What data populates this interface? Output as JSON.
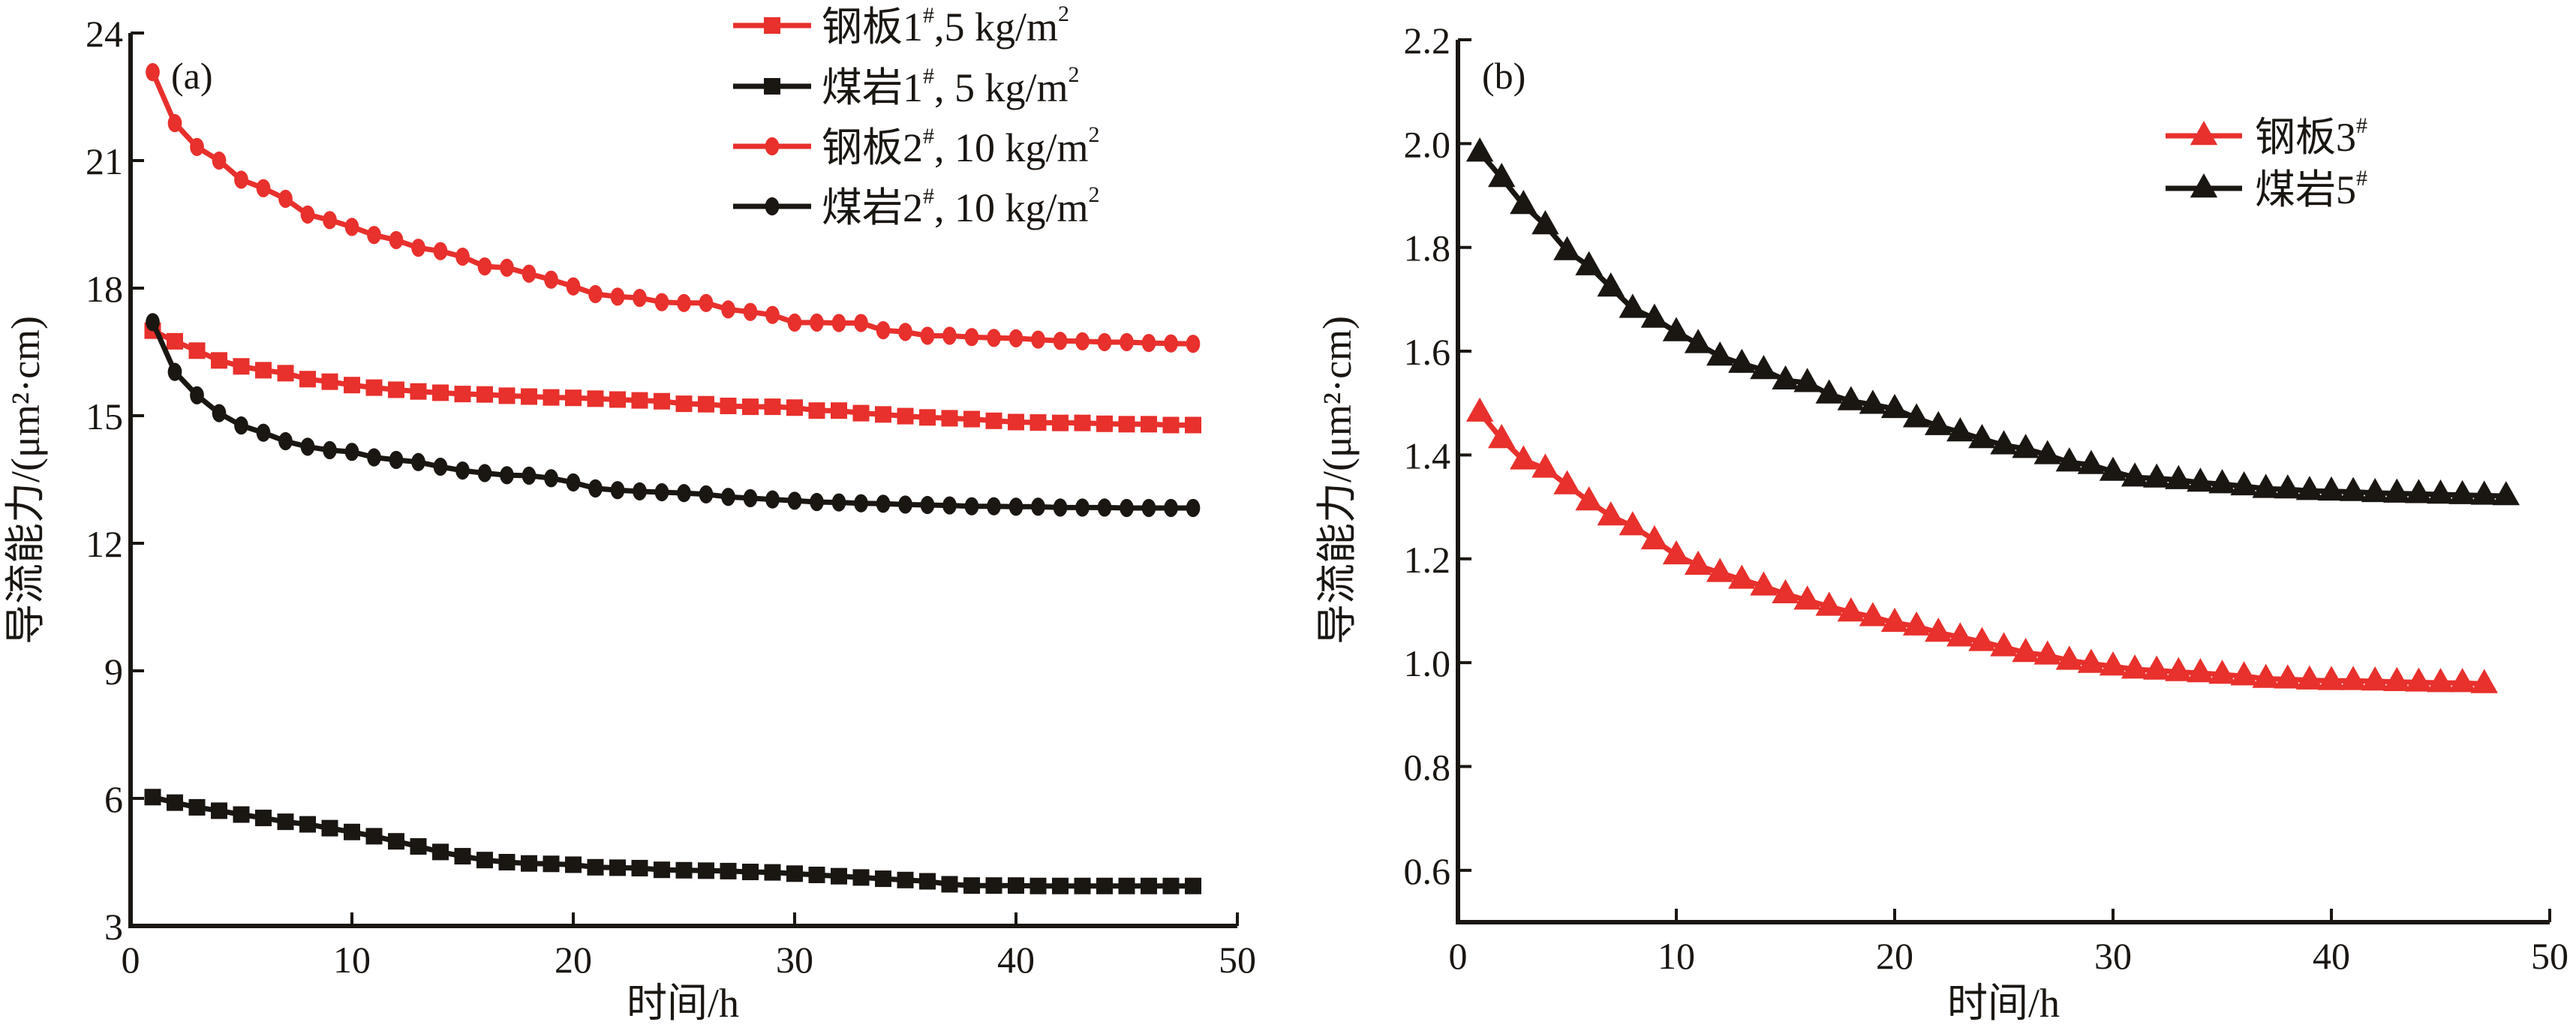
{
  "colors": {
    "steel": "#e8302c",
    "coal": "#1a1612"
  },
  "chart_data": [
    {
      "type": "line",
      "panel_label": "(a)",
      "xlabel": "时间/h",
      "ylabel": "导流能力/(μm²·cm)",
      "xlim": [
        0,
        50
      ],
      "ylim": [
        3,
        24
      ],
      "xticks": [
        0,
        10,
        20,
        30,
        40,
        50
      ],
      "yticks": [
        3,
        6,
        9,
        12,
        15,
        18,
        21,
        24
      ],
      "grid": false,
      "legend_position": "top-right",
      "x": [
        1,
        2,
        3,
        4,
        5,
        6,
        7,
        8,
        9,
        10,
        11,
        12,
        13,
        14,
        15,
        16,
        17,
        18,
        19,
        20,
        21,
        22,
        23,
        24,
        25,
        26,
        27,
        28,
        29,
        30,
        31,
        32,
        33,
        34,
        35,
        36,
        37,
        38,
        39,
        40,
        41,
        42,
        43,
        44,
        45,
        46,
        47,
        48
      ],
      "series": [
        {
          "name": "钢板1#,5 kg/m2",
          "legend_label": "钢板1",
          "legend_suffix": ",5 kg/m",
          "color_key": "steel",
          "marker": "square",
          "values": [
            17.0,
            16.75,
            16.53,
            16.3,
            16.16,
            16.07,
            16.0,
            15.86,
            15.8,
            15.72,
            15.66,
            15.61,
            15.57,
            15.54,
            15.51,
            15.5,
            15.47,
            15.45,
            15.43,
            15.42,
            15.4,
            15.38,
            15.36,
            15.34,
            15.28,
            15.27,
            15.23,
            15.21,
            15.21,
            15.19,
            15.12,
            15.12,
            15.06,
            15.03,
            14.99,
            14.96,
            14.94,
            14.92,
            14.88,
            14.85,
            14.84,
            14.83,
            14.83,
            14.81,
            14.8,
            14.8,
            14.78,
            14.78
          ]
        },
        {
          "name": "煤岩1#, 5 kg/m2",
          "legend_label": "煤岩1",
          "legend_suffix": ", 5  kg/m",
          "color_key": "coal",
          "marker": "square",
          "values": [
            6.03,
            5.9,
            5.79,
            5.71,
            5.62,
            5.54,
            5.45,
            5.39,
            5.3,
            5.21,
            5.11,
            4.99,
            4.87,
            4.74,
            4.64,
            4.55,
            4.5,
            4.47,
            4.46,
            4.44,
            4.38,
            4.37,
            4.36,
            4.32,
            4.31,
            4.3,
            4.29,
            4.27,
            4.26,
            4.23,
            4.2,
            4.17,
            4.14,
            4.11,
            4.08,
            4.05,
            3.98,
            3.95,
            3.95,
            3.95,
            3.94,
            3.94,
            3.94,
            3.94,
            3.94,
            3.94,
            3.94,
            3.94
          ]
        },
        {
          "name": "钢板2#, 10 kg/m2",
          "legend_label": "钢板2",
          "legend_suffix": ", 10 kg/m",
          "color_key": "steel",
          "marker": "circle",
          "values": [
            23.08,
            21.88,
            21.32,
            21.0,
            20.55,
            20.35,
            20.1,
            19.73,
            19.6,
            19.44,
            19.25,
            19.13,
            18.95,
            18.87,
            18.74,
            18.51,
            18.48,
            18.34,
            18.2,
            18.04,
            17.86,
            17.8,
            17.77,
            17.67,
            17.65,
            17.65,
            17.5,
            17.44,
            17.37,
            17.19,
            17.19,
            17.18,
            17.18,
            17.01,
            16.97,
            16.88,
            16.88,
            16.85,
            16.83,
            16.82,
            16.79,
            16.76,
            16.75,
            16.73,
            16.73,
            16.71,
            16.7,
            16.69
          ]
        },
        {
          "name": "煤岩2#, 10 kg/m2",
          "legend_label": "煤岩2",
          "legend_suffix": ", 10 kg/m",
          "color_key": "coal",
          "marker": "circle",
          "values": [
            17.2,
            16.03,
            15.48,
            15.06,
            14.77,
            14.6,
            14.4,
            14.27,
            14.19,
            14.15,
            14.02,
            13.96,
            13.91,
            13.8,
            13.71,
            13.65,
            13.6,
            13.59,
            13.53,
            13.43,
            13.29,
            13.25,
            13.22,
            13.2,
            13.18,
            13.15,
            13.09,
            13.06,
            13.03,
            13.0,
            12.97,
            12.96,
            12.94,
            12.93,
            12.91,
            12.9,
            12.89,
            12.87,
            12.87,
            12.86,
            12.86,
            12.84,
            12.84,
            12.84,
            12.83,
            12.83,
            12.83,
            12.83
          ]
        }
      ]
    },
    {
      "type": "line",
      "panel_label": "(b)",
      "xlabel": "时间/h",
      "ylabel": "导流能力/(μm²·cm)",
      "xlim": [
        0,
        50
      ],
      "ylim": [
        0.5,
        2.2
      ],
      "xticks": [
        0,
        10,
        20,
        30,
        40,
        50
      ],
      "yticks": [
        "0.6",
        "0.8",
        "1.0",
        "1.2",
        "1.4",
        "1.6",
        "1.8",
        "2.0",
        "2.2"
      ],
      "grid": false,
      "legend_position": "top-right",
      "series": [
        {
          "name": "钢板3#",
          "legend_label": "钢板3",
          "color_key": "steel",
          "marker": "triangle",
          "x": [
            1,
            2,
            3,
            4,
            5,
            6,
            7,
            8,
            9,
            10,
            11,
            12,
            13,
            14,
            15,
            16,
            17,
            18,
            19,
            20,
            21,
            22,
            23,
            24,
            25,
            26,
            27,
            28,
            29,
            30,
            31,
            32,
            33,
            34,
            35,
            36,
            37,
            38,
            39,
            40,
            41,
            42,
            43,
            44,
            45,
            46,
            47
          ],
          "values": [
            1.482,
            1.431,
            1.39,
            1.374,
            1.342,
            1.311,
            1.282,
            1.263,
            1.236,
            1.207,
            1.187,
            1.173,
            1.16,
            1.147,
            1.132,
            1.12,
            1.108,
            1.097,
            1.088,
            1.077,
            1.07,
            1.058,
            1.049,
            1.04,
            1.03,
            1.019,
            1.014,
            1.004,
            0.998,
            0.993,
            0.987,
            0.985,
            0.982,
            0.98,
            0.977,
            0.974,
            0.969,
            0.968,
            0.966,
            0.965,
            0.965,
            0.964,
            0.963,
            0.962,
            0.961,
            0.961,
            0.959
          ]
        },
        {
          "name": "煤岩5#",
          "legend_label": "煤岩5",
          "color_key": "coal",
          "marker": "triangle",
          "x": [
            1,
            2,
            3,
            4,
            5,
            6,
            7,
            8,
            9,
            10,
            11,
            12,
            13,
            14,
            15,
            16,
            17,
            18,
            19,
            20,
            21,
            22,
            23,
            24,
            25,
            26,
            27,
            28,
            29,
            30,
            31,
            32,
            33,
            34,
            35,
            36,
            37,
            38,
            39,
            40,
            41,
            42,
            43,
            44,
            45,
            46,
            47,
            48
          ],
          "values": [
            1.983,
            1.934,
            1.882,
            1.843,
            1.793,
            1.764,
            1.723,
            1.682,
            1.663,
            1.637,
            1.614,
            1.59,
            1.576,
            1.564,
            1.544,
            1.539,
            1.517,
            1.504,
            1.497,
            1.489,
            1.471,
            1.456,
            1.444,
            1.431,
            1.419,
            1.412,
            1.4,
            1.386,
            1.381,
            1.368,
            1.357,
            1.355,
            1.352,
            1.347,
            1.344,
            1.34,
            1.335,
            1.334,
            1.331,
            1.33,
            1.329,
            1.327,
            1.326,
            1.325,
            1.324,
            1.323,
            1.322,
            1.321
          ]
        }
      ]
    }
  ],
  "legend_common": {
    "superscript_hash": "#",
    "superscript_two": "2"
  }
}
